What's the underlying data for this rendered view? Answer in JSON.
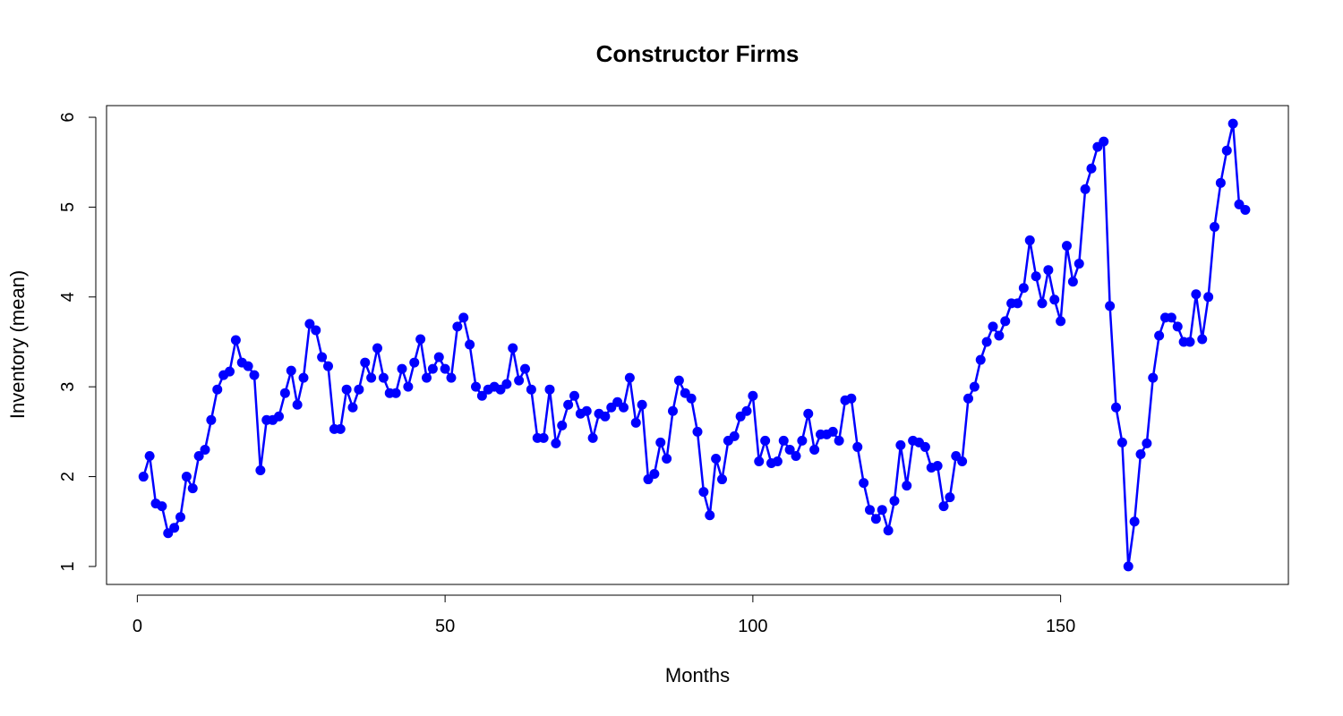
{
  "chart_data": {
    "type": "line",
    "title": "Constructor Firms",
    "xlabel": "Months",
    "ylabel": "Inventory (mean)",
    "xlim": [
      -5,
      187
    ],
    "ylim": [
      0.8,
      6.13
    ],
    "x_ticks": [
      0,
      50,
      100,
      150
    ],
    "y_ticks": [
      1,
      2,
      3,
      4,
      5,
      6
    ],
    "x_tick_labels": [
      "0",
      "50",
      "100",
      "150"
    ],
    "y_tick_labels": [
      "1",
      "2",
      "3",
      "4",
      "5",
      "6"
    ],
    "grid": false,
    "colors": {
      "series": "#0000ff",
      "axis": "#000000"
    },
    "series": [
      {
        "x": [
          1,
          2,
          3,
          4,
          5,
          6,
          7,
          8,
          9,
          10,
          11,
          12,
          13,
          14,
          15,
          16,
          17,
          18,
          19,
          20,
          21,
          22,
          23,
          24,
          25,
          26,
          27,
          28,
          29,
          30,
          31,
          32,
          33,
          34,
          35,
          36,
          37,
          38,
          39,
          40,
          41,
          42,
          43,
          44,
          45,
          46,
          47,
          48,
          49,
          50,
          51,
          52,
          53,
          54,
          55,
          56,
          57,
          58,
          59,
          60,
          61,
          62,
          63,
          64,
          65,
          66,
          67,
          68,
          69,
          70,
          71,
          72,
          73,
          74,
          75,
          76,
          77,
          78,
          79,
          80,
          81,
          82,
          83,
          84,
          85,
          86,
          87,
          88,
          89,
          90,
          91,
          92,
          93,
          94,
          95,
          96,
          97,
          98,
          99,
          100,
          101,
          102,
          103,
          104,
          105,
          106,
          107,
          108,
          109,
          110,
          111,
          112,
          113,
          114,
          115,
          116,
          117,
          118,
          119,
          120,
          121,
          122,
          123,
          124,
          125,
          126,
          127,
          128,
          129,
          130,
          131,
          132,
          133,
          134,
          135,
          136,
          137,
          138,
          139,
          140,
          141,
          142,
          143,
          144,
          145,
          146,
          147,
          148,
          149,
          150,
          151,
          152,
          153,
          154,
          155,
          156,
          157,
          158,
          159,
          160,
          161,
          162,
          163,
          164,
          165,
          166,
          167,
          168,
          169,
          170,
          171,
          172,
          173,
          174,
          175,
          176,
          177,
          178,
          179,
          180
        ],
        "y": [
          2.0,
          2.23,
          1.7,
          1.67,
          1.37,
          1.43,
          1.55,
          2.0,
          1.87,
          2.23,
          2.3,
          2.63,
          2.97,
          3.13,
          3.17,
          3.52,
          3.27,
          3.23,
          3.13,
          2.07,
          2.63,
          2.63,
          2.67,
          2.93,
          3.18,
          2.8,
          3.1,
          3.7,
          3.63,
          3.33,
          3.23,
          2.53,
          2.53,
          2.97,
          2.77,
          2.97,
          3.27,
          3.1,
          3.43,
          3.1,
          2.93,
          2.93,
          3.2,
          3.0,
          3.27,
          3.53,
          3.1,
          3.2,
          3.33,
          3.2,
          3.1,
          3.67,
          3.77,
          3.47,
          3.0,
          2.9,
          2.97,
          3.0,
          2.97,
          3.03,
          3.43,
          3.07,
          3.2,
          2.97,
          2.43,
          2.43,
          2.97,
          2.37,
          2.57,
          2.8,
          2.9,
          2.7,
          2.73,
          2.43,
          2.7,
          2.67,
          2.77,
          2.83,
          2.77,
          3.1,
          2.6,
          2.8,
          1.97,
          2.03,
          2.38,
          2.2,
          2.73,
          3.07,
          2.93,
          2.87,
          2.5,
          1.83,
          1.57,
          2.2,
          1.97,
          2.4,
          2.45,
          2.67,
          2.73,
          2.9,
          2.17,
          2.4,
          2.15,
          2.17,
          2.4,
          2.3,
          2.23,
          2.4,
          2.7,
          2.3,
          2.47,
          2.47,
          2.5,
          2.4,
          2.85,
          2.87,
          2.33,
          1.93,
          1.63,
          1.53,
          1.63,
          1.4,
          1.73,
          2.35,
          1.9,
          2.4,
          2.38,
          2.33,
          2.1,
          2.12,
          1.67,
          1.77,
          2.23,
          2.17,
          2.87,
          3.0,
          3.3,
          3.5,
          3.67,
          3.57,
          3.73,
          3.93,
          3.93,
          4.1,
          4.63,
          4.23,
          3.93,
          4.3,
          3.97,
          3.73,
          4.57,
          4.17,
          4.37,
          5.2,
          5.43,
          5.67,
          5.73,
          3.9,
          2.77,
          2.38,
          1.0,
          1.5,
          2.25,
          2.37,
          3.1,
          3.57,
          3.77,
          3.77,
          3.67,
          3.5,
          3.5,
          4.03,
          3.53,
          4.0,
          4.78,
          5.27,
          5.63,
          5.93,
          5.03,
          4.97
        ]
      }
    ]
  }
}
